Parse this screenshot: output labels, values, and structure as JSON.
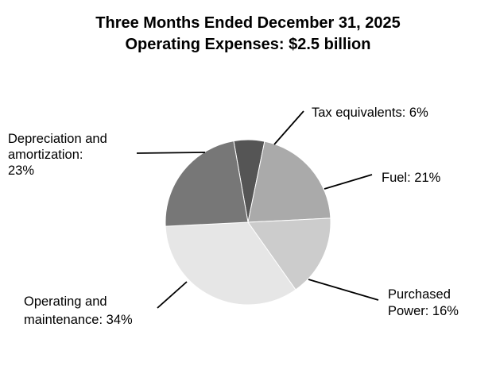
{
  "chart_data": {
    "type": "pie",
    "title": "Three Months Ended December 31, 2025",
    "subtitle": "Operating Expenses: $2.5 billion",
    "slices": [
      {
        "label": "Tax equivalents: 6%",
        "value": 6,
        "color": "#555555"
      },
      {
        "label": "Fuel: 21%",
        "value": 21,
        "color": "#aaaaaa"
      },
      {
        "label": "Purchased Power: 16%",
        "value": 16,
        "color": "#cccccc"
      },
      {
        "label": "Operating and maintenance: 34%",
        "value": 34,
        "color": "#e6e6e6"
      },
      {
        "label": "Depreciation and amortization: 23%",
        "value": 23,
        "color": "#777777"
      }
    ],
    "label_lines": [
      [
        "Tax equivalents: 6%"
      ],
      [
        "Fuel: 21%"
      ],
      [
        "Purchased",
        "Power: 16%"
      ],
      [
        "Operating and",
        "maintenance: 34%"
      ],
      [
        "Depreciation and",
        "amortization:",
        "23%"
      ]
    ],
    "start_angle_deg": -10,
    "direction": "clockwise",
    "legend": "none"
  }
}
